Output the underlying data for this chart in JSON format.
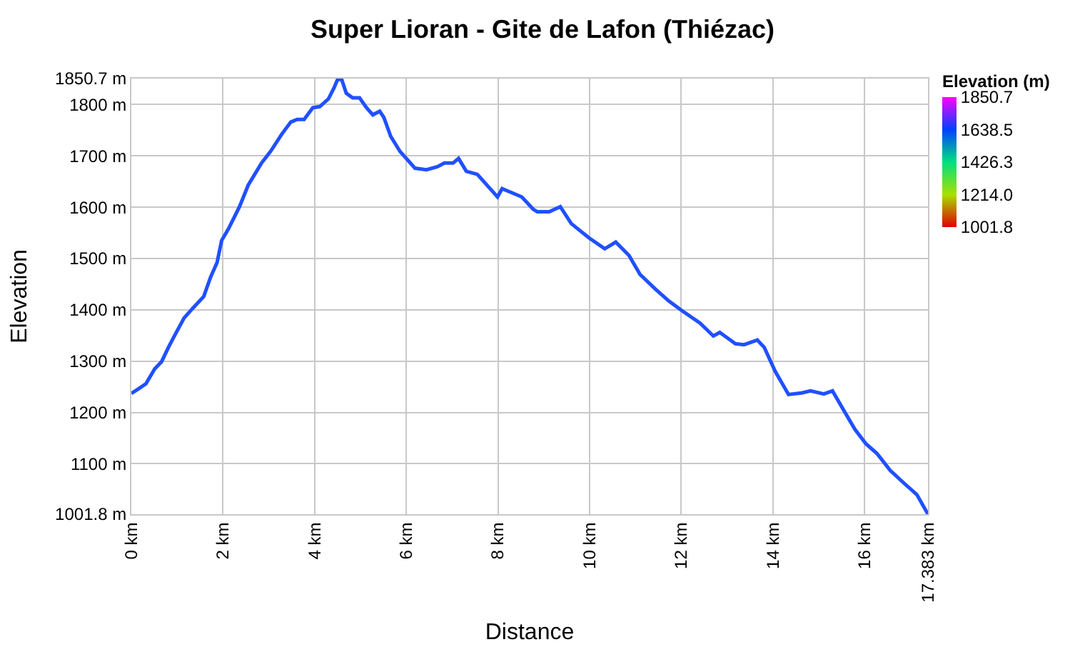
{
  "chart_data": {
    "type": "line",
    "title": "Super Lioran - Gite de Lafon (Thiézac)",
    "xlabel": "Distance",
    "ylabel": "Elevation",
    "clabel": "Elevation (m)",
    "clim": [
      1001.8,
      1850.7
    ],
    "cticks": [
      1850.7,
      1638.5,
      1426.3,
      {
        "value": 1214,
        "label": "1214.0"
      },
      1001.8
    ],
    "xlim": [
      0,
      17.383
    ],
    "xticks": [
      {
        "value": 0,
        "label": "0 km"
      },
      {
        "value": 2,
        "label": "2 km"
      },
      {
        "value": 4,
        "label": "4 km"
      },
      {
        "value": 6,
        "label": "6 km"
      },
      {
        "value": 8,
        "label": "8 km"
      },
      {
        "value": 10,
        "label": "10 km"
      },
      {
        "value": 12,
        "label": "12 km"
      },
      {
        "value": 14,
        "label": "14 km"
      },
      {
        "value": 16,
        "label": "16 km"
      },
      {
        "value": 17.383,
        "label": "17.383 km"
      }
    ],
    "ylim": [
      1001.8,
      1850.7
    ],
    "yticks": [
      {
        "value": 1001.8,
        "label": "1001.8 m"
      },
      {
        "value": 1100,
        "label": "1100 m"
      },
      {
        "value": 1200,
        "label": "1200 m"
      },
      {
        "value": 1300,
        "label": "1300 m"
      },
      {
        "value": 1400,
        "label": "1400 m"
      },
      {
        "value": 1500,
        "label": "1500 m"
      },
      {
        "value": 1600,
        "label": "1600 m"
      },
      {
        "value": 1700,
        "label": "1700 m"
      },
      {
        "value": 1800,
        "label": "1800 m"
      },
      {
        "value": 1850.7,
        "label": "1850.7 m"
      }
    ],
    "grid": true,
    "marker": "none",
    "line_style": "solid",
    "x": [
      0,
      0.17,
      0.32,
      0.51,
      0.66,
      0.81,
      0.95,
      1.15,
      1.34,
      1.58,
      1.73,
      1.87,
      1.97,
      2.12,
      2.36,
      2.55,
      2.84,
      3.04,
      3.28,
      3.48,
      3.62,
      3.77,
      3.96,
      4.11,
      4.3,
      4.42,
      4.5,
      4.59,
      4.69,
      4.83,
      4.98,
      5.13,
      5.27,
      5.42,
      5.51,
      5.66,
      5.86,
      6.05,
      6.19,
      6.44,
      6.68,
      6.83,
      7.02,
      7.14,
      7.31,
      7.55,
      7.8,
      7.99,
      8.09,
      8.28,
      8.52,
      8.77,
      8.86,
      9.12,
      9.36,
      9.6,
      9.99,
      10.33,
      10.57,
      10.86,
      11.1,
      11.44,
      11.73,
      12.02,
      12.41,
      12.7,
      12.84,
      13.18,
      13.37,
      13.66,
      13.81,
      14.05,
      14.34,
      14.63,
      14.82,
      15.11,
      15.3,
      15.54,
      15.79,
      16.03,
      16.27,
      16.56,
      16.85,
      17.14,
      17.383
    ],
    "series": [
      {
        "values": [
          1237,
          1247,
          1256,
          1285,
          1299,
          1327,
          1351,
          1384,
          1403,
          1426,
          1464,
          1492,
          1535,
          1558,
          1601,
          1643,
          1686,
          1709,
          1742,
          1766,
          1771,
          1771,
          1794,
          1796,
          1811,
          1832,
          1849,
          1849,
          1822,
          1813,
          1813,
          1794,
          1780,
          1787,
          1775,
          1738,
          1709,
          1690,
          1676,
          1673,
          1679,
          1686,
          1686,
          1695,
          1670,
          1664,
          1639,
          1620,
          1636,
          1629,
          1620,
          1596,
          1591,
          1591,
          1601,
          1568,
          1540,
          1519,
          1532,
          1506,
          1469,
          1440,
          1417,
          1398,
          1374,
          1349,
          1356,
          1334,
          1332,
          1341,
          1327,
          1280,
          1235,
          1238,
          1242,
          1236,
          1242,
          1205,
          1167,
          1139,
          1120,
          1087,
          1063,
          1040,
          1001.8
        ]
      }
    ]
  }
}
